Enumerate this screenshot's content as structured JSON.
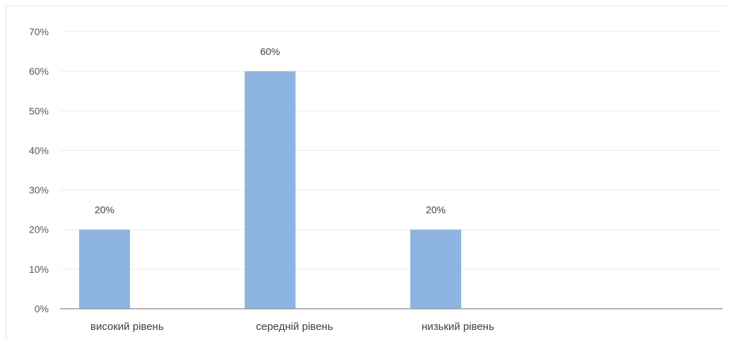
{
  "chart_data": {
    "type": "bar",
    "categories": [
      "високий рівень",
      "середній рівень",
      "низький рівень",
      ""
    ],
    "values": [
      20,
      60,
      20,
      null
    ],
    "data_labels": [
      "20%",
      "60%",
      "20%",
      ""
    ],
    "y_ticks": [
      "0%",
      "10%",
      "20%",
      "30%",
      "40%",
      "50%",
      "60%",
      "70%"
    ],
    "ylim": [
      0,
      70
    ],
    "title": "",
    "xlabel": "",
    "ylabel": "",
    "grid": true,
    "legend": "none",
    "colors": {
      "bar": "#8db4e2",
      "grid": "#ececec",
      "axis": "#9d9d9d"
    }
  }
}
